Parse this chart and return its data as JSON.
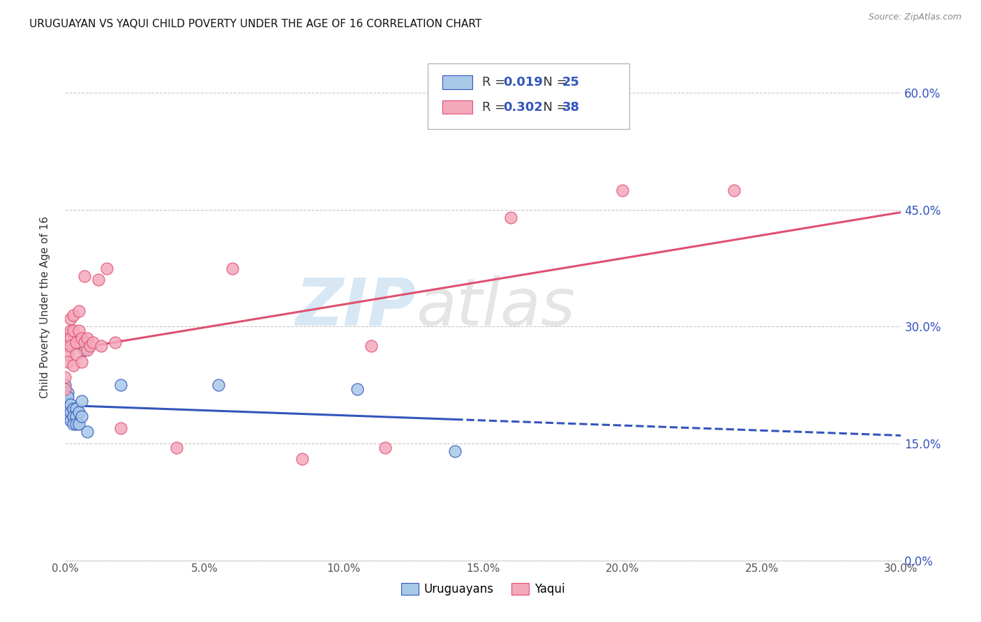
{
  "title": "URUGUAYAN VS YAQUI CHILD POVERTY UNDER THE AGE OF 16 CORRELATION CHART",
  "source": "Source: ZipAtlas.com",
  "xlabel_ticks": [
    "0.0%",
    "5.0%",
    "10.0%",
    "15.0%",
    "20.0%",
    "25.0%",
    "30.0%"
  ],
  "ylabel_ticks": [
    "0.0%",
    "15.0%",
    "30.0%",
    "45.0%",
    "60.0%"
  ],
  "ylabel_label": "Child Poverty Under the Age of 16",
  "legend_label1": "Uruguayans",
  "legend_label2": "Yaqui",
  "R1": "0.019",
  "N1": "25",
  "R2": "0.302",
  "N2": "38",
  "watermark_zip": "ZIP",
  "watermark_atlas": "atlas",
  "color_uruguayan": "#A8C8E8",
  "color_yaqui": "#F4A8BC",
  "color_line_uruguayan": "#3355BB",
  "color_line_yaqui": "#E05070",
  "uruguayan_x": [
    0.0,
    0.0,
    0.001,
    0.001,
    0.001,
    0.001,
    0.002,
    0.002,
    0.002,
    0.003,
    0.003,
    0.003,
    0.004,
    0.004,
    0.004,
    0.005,
    0.005,
    0.006,
    0.006,
    0.007,
    0.008,
    0.02,
    0.055,
    0.105,
    0.14
  ],
  "uruguayan_y": [
    0.225,
    0.215,
    0.215,
    0.21,
    0.195,
    0.185,
    0.2,
    0.19,
    0.18,
    0.195,
    0.185,
    0.175,
    0.195,
    0.185,
    0.175,
    0.19,
    0.175,
    0.205,
    0.185,
    0.27,
    0.165,
    0.225,
    0.225,
    0.22,
    0.14
  ],
  "yaqui_x": [
    0.0,
    0.0,
    0.001,
    0.001,
    0.001,
    0.001,
    0.002,
    0.002,
    0.002,
    0.002,
    0.003,
    0.003,
    0.003,
    0.004,
    0.004,
    0.005,
    0.005,
    0.006,
    0.006,
    0.007,
    0.007,
    0.008,
    0.008,
    0.009,
    0.01,
    0.012,
    0.013,
    0.015,
    0.018,
    0.02,
    0.04,
    0.06,
    0.085,
    0.11,
    0.115,
    0.16,
    0.2,
    0.24
  ],
  "yaqui_y": [
    0.235,
    0.22,
    0.29,
    0.275,
    0.265,
    0.255,
    0.295,
    0.285,
    0.31,
    0.275,
    0.315,
    0.295,
    0.25,
    0.28,
    0.265,
    0.32,
    0.295,
    0.255,
    0.285,
    0.365,
    0.28,
    0.27,
    0.285,
    0.275,
    0.28,
    0.36,
    0.275,
    0.375,
    0.28,
    0.17,
    0.145,
    0.375,
    0.13,
    0.275,
    0.145,
    0.44,
    0.475,
    0.475
  ],
  "xlim": [
    0.0,
    0.3
  ],
  "ylim": [
    0.0,
    0.65
  ],
  "background_color": "#FFFFFF",
  "grid_color": "#BBBBBB"
}
